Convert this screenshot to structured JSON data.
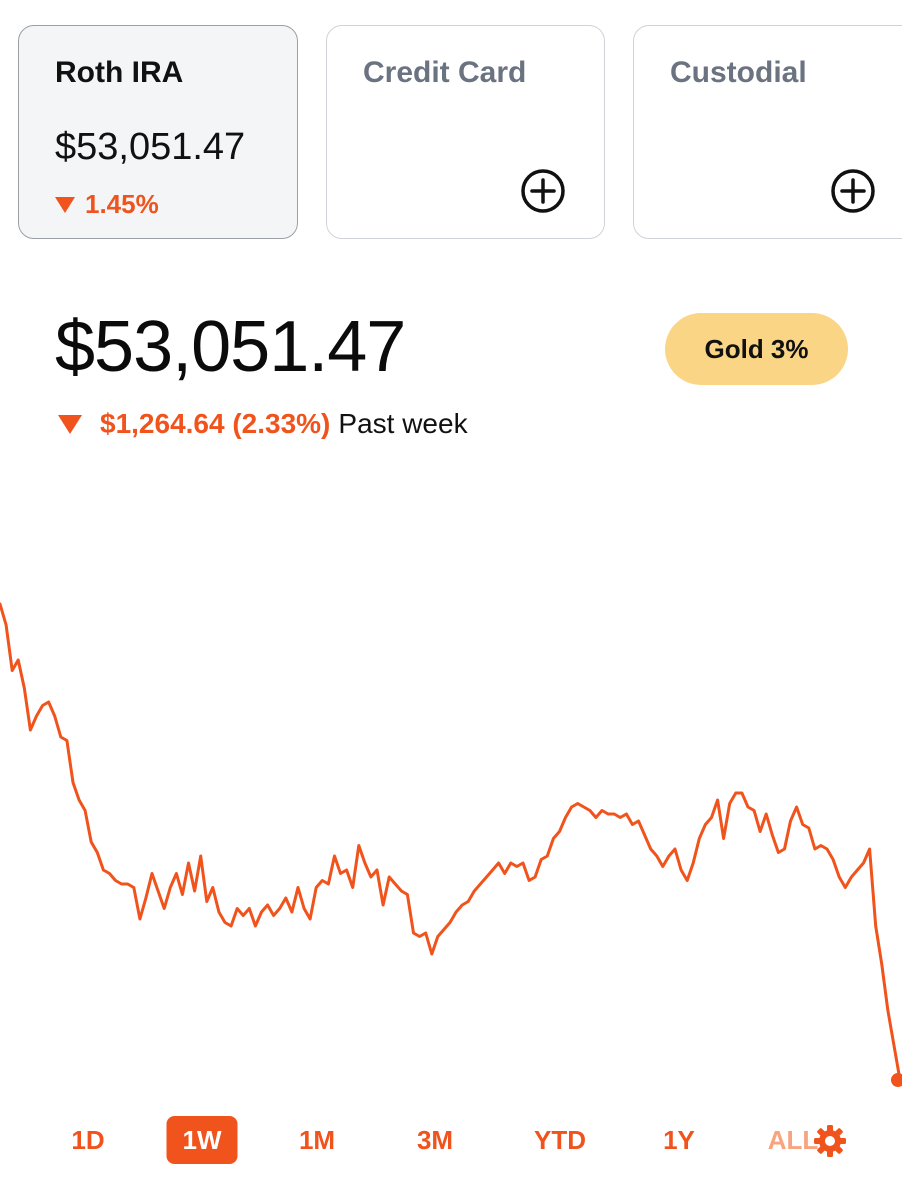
{
  "accounts": [
    {
      "name": "Roth IRA",
      "value": "$53,051.47",
      "change": "1.45%",
      "active": true
    },
    {
      "name": "Credit Card",
      "add_icon": "plus-circle-icon"
    },
    {
      "name": "Custodial",
      "add_icon": "plus-circle-icon"
    }
  ],
  "portfolio": {
    "balance": "$53,051.47",
    "change_amount": "$1,264.64 (2.33%)",
    "change_period": "Past week",
    "direction": "down"
  },
  "gold_badge": "Gold 3%",
  "colors": {
    "accent": "#f0531c",
    "gold": "#fbd586",
    "card_active_bg": "#f3f5f7"
  },
  "chart_data": {
    "type": "line",
    "series": [
      {
        "values": [
          55.4,
          55.1,
          54.45,
          54.6,
          54.2,
          53.6,
          53.8,
          53.95,
          54.0,
          53.8,
          53.5,
          53.45,
          52.85,
          52.6,
          52.45,
          52.0,
          51.85,
          51.6,
          51.55,
          51.45,
          51.4,
          51.4,
          51.35,
          50.9,
          51.2,
          51.55,
          51.3,
          51.05,
          51.35,
          51.55,
          51.25,
          51.7,
          51.3,
          51.8,
          51.15,
          51.35,
          51.0,
          50.85,
          50.8,
          51.05,
          50.95,
          51.05,
          50.8,
          51.0,
          51.1,
          50.95,
          51.05,
          51.2,
          51.0,
          51.35,
          51.05,
          50.9,
          51.35,
          51.45,
          51.4,
          51.8,
          51.55,
          51.6,
          51.35,
          51.95,
          51.7,
          51.5,
          51.6,
          51.1,
          51.5,
          51.4,
          51.3,
          51.25,
          50.7,
          50.65,
          50.7,
          50.4,
          50.65,
          50.75,
          50.85,
          51.0,
          51.1,
          51.15,
          51.3,
          51.4,
          51.5,
          51.6,
          51.7,
          51.55,
          51.7,
          51.65,
          51.7,
          51.45,
          51.5,
          51.75,
          51.8,
          52.05,
          52.15,
          52.35,
          52.5,
          52.55,
          52.5,
          52.45,
          52.35,
          52.45,
          52.4,
          52.4,
          52.35,
          52.4,
          52.25,
          52.3,
          52.1,
          51.9,
          51.8,
          51.65,
          51.8,
          51.9,
          51.6,
          51.45,
          51.7,
          52.05,
          52.25,
          52.35,
          52.6,
          52.05,
          52.55,
          52.7,
          52.7,
          52.5,
          52.45,
          52.15,
          52.4,
          52.1,
          51.85,
          51.9,
          52.3,
          52.5,
          52.25,
          52.2,
          51.9,
          51.95,
          51.9,
          51.75,
          51.5,
          51.35,
          51.5,
          51.6,
          51.7,
          51.9,
          50.8,
          50.25,
          49.6,
          49.1,
          48.6
        ]
      }
    ],
    "range_options": [
      "1D",
      "1W",
      "1M",
      "3M",
      "YTD",
      "1Y",
      "ALL"
    ],
    "selected_range": "1W",
    "grid": false,
    "axes_visible": false
  }
}
